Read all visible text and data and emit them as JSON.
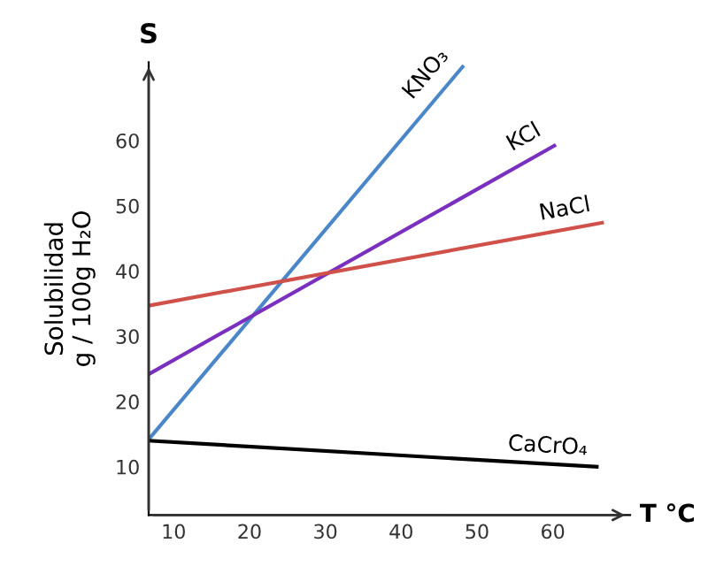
{
  "chart_data": {
    "type": "line",
    "title": "S",
    "xlabel": "T °C",
    "ylabel": "Solubilidad\ng / 100g H₂O",
    "xlim": [
      6.7,
      70.2
    ],
    "ylim": [
      2.6,
      72
    ],
    "xticks": [
      10,
      20,
      30,
      40,
      50,
      60
    ],
    "yticks": [
      10,
      20,
      30,
      40,
      50,
      60
    ],
    "grid": false,
    "legend": false,
    "marker": "none",
    "line_style": "solid",
    "series": [
      {
        "name": "KNO₃",
        "color": "#4a86c8",
        "x": [
          6.7,
          48.1
        ],
        "values": [
          14.2,
          71.3
        ]
      },
      {
        "name": "KCl",
        "color": "#7b2fbf",
        "x": [
          6.7,
          60.2
        ],
        "values": [
          24.2,
          59.2
        ]
      },
      {
        "name": "NaCl",
        "color": "#d0504a",
        "x": [
          6.7,
          66.5
        ],
        "values": [
          34.7,
          47.4
        ]
      },
      {
        "name": "CaCrO₄",
        "color": "#000000",
        "x": [
          6.7,
          65.8
        ],
        "values": [
          14.0,
          10.0
        ]
      }
    ]
  }
}
